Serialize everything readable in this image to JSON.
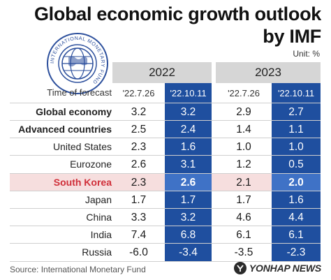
{
  "title_line1": "Global economic growth outlook",
  "title_line2": "by IMF",
  "unit": "Unit: %",
  "logo_text": "INTERNATIONAL MONETARY FUND",
  "years": [
    "2022",
    "2023"
  ],
  "forecast_label": "Time of forecast",
  "forecast_dates": [
    "'22.7.26",
    "'22.10.11",
    "'22.7.26",
    "'22.10.11"
  ],
  "rows": [
    {
      "label": "Global economy",
      "values": [
        "3.2",
        "3.2",
        "2.9",
        "2.7"
      ]
    },
    {
      "label": "Advanced countries",
      "values": [
        "2.5",
        "2.4",
        "1.4",
        "1.1"
      ]
    },
    {
      "label": "United States",
      "values": [
        "2.3",
        "1.6",
        "1.0",
        "1.0"
      ]
    },
    {
      "label": "Eurozone",
      "values": [
        "2.6",
        "3.1",
        "1.2",
        "0.5"
      ]
    },
    {
      "label": "South Korea",
      "values": [
        "2.3",
        "2.6",
        "2.1",
        "2.0"
      ]
    },
    {
      "label": "Japan",
      "values": [
        "1.7",
        "1.7",
        "1.7",
        "1.6"
      ]
    },
    {
      "label": "China",
      "values": [
        "3.3",
        "3.2",
        "4.6",
        "4.4"
      ]
    },
    {
      "label": "India",
      "values": [
        "7.4",
        "6.8",
        "6.1",
        "6.1"
      ]
    },
    {
      "label": "Russia",
      "values": [
        "-6.0",
        "-3.4",
        "-3.5",
        "-2.3"
      ]
    }
  ],
  "source": "Source: International Monetary Fund",
  "brand": "YONHAP NEWS",
  "colors": {
    "accent_blue": "#1f4f9f",
    "highlight_red": "#d0303a",
    "highlight_bg": "#f6dede",
    "year_bar": "#d6d6d6"
  }
}
